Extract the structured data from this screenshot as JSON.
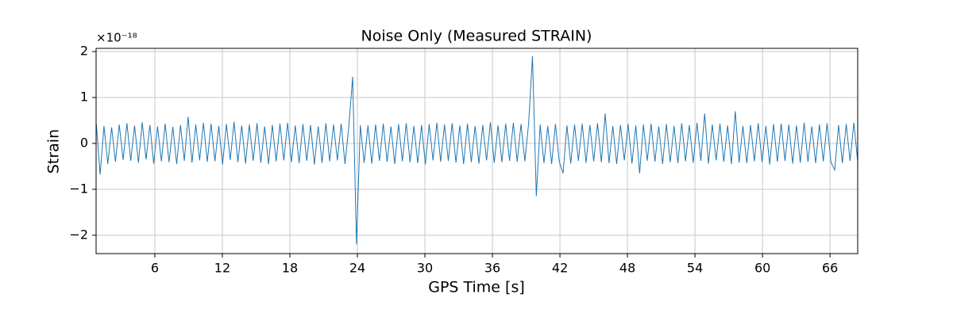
{
  "chart_data": {
    "type": "line",
    "title": "Noise Only (Measured STRAIN)",
    "xlabel": "GPS Time [s]",
    "ylabel": "Strain",
    "y_offset_label": "×10⁻¹⁸",
    "x": [
      0.8,
      1.14,
      1.48,
      1.82,
      2.16,
      2.5,
      2.84,
      3.18,
      3.52,
      3.86,
      4.2,
      4.54,
      4.88,
      5.22,
      5.56,
      5.9,
      6.24,
      6.58,
      6.92,
      7.26,
      7.6,
      7.94,
      8.28,
      8.62,
      8.96,
      9.3,
      9.64,
      9.98,
      10.32,
      10.66,
      11.0,
      11.34,
      11.68,
      12.02,
      12.36,
      12.7,
      13.04,
      13.38,
      13.72,
      14.06,
      14.4,
      14.74,
      15.08,
      15.42,
      15.76,
      16.1,
      16.44,
      16.78,
      17.12,
      17.46,
      17.8,
      18.14,
      18.48,
      18.82,
      19.16,
      19.5,
      19.84,
      20.18,
      20.52,
      20.86,
      21.2,
      21.54,
      21.88,
      22.22,
      22.56,
      22.9,
      23.24,
      23.58,
      23.92,
      24.26,
      24.6,
      24.94,
      25.28,
      25.62,
      25.96,
      26.3,
      26.64,
      26.98,
      27.32,
      27.66,
      28.0,
      28.34,
      28.68,
      29.02,
      29.36,
      29.7,
      30.04,
      30.38,
      30.72,
      31.06,
      31.4,
      31.74,
      32.08,
      32.42,
      32.76,
      33.1,
      33.44,
      33.78,
      34.12,
      34.46,
      34.8,
      35.14,
      35.48,
      35.82,
      36.16,
      36.5,
      36.84,
      37.18,
      37.52,
      37.86,
      38.2,
      38.54,
      38.88,
      39.22,
      39.56,
      39.9,
      40.24,
      40.58,
      40.92,
      41.26,
      41.6,
      41.94,
      42.28,
      42.62,
      42.96,
      43.3,
      43.64,
      43.98,
      44.32,
      44.66,
      45.0,
      45.34,
      45.68,
      46.02,
      46.36,
      46.7,
      47.04,
      47.38,
      47.72,
      48.06,
      48.4,
      48.74,
      49.08,
      49.42,
      49.76,
      50.1,
      50.44,
      50.78,
      51.12,
      51.46,
      51.8,
      52.14,
      52.48,
      52.82,
      53.16,
      53.5,
      53.84,
      54.18,
      54.52,
      54.86,
      55.2,
      55.54,
      55.88,
      56.22,
      56.56,
      56.9,
      57.24,
      57.58,
      57.92,
      58.26,
      58.6,
      58.94,
      59.28,
      59.62,
      59.96,
      60.3,
      60.64,
      60.98,
      61.32,
      61.66,
      62.0,
      62.34,
      62.68,
      63.02,
      63.36,
      63.7,
      64.04,
      64.38,
      64.72,
      65.06,
      65.4,
      65.74,
      66.08,
      66.42,
      66.76,
      67.1,
      67.44,
      67.78,
      68.12,
      68.46
    ],
    "series": [
      {
        "color": "#1f77b4",
        "values": [
          0.42,
          -0.68,
          0.38,
          -0.45,
          0.35,
          -0.4,
          0.41,
          -0.36,
          0.44,
          -0.38,
          0.39,
          -0.42,
          0.46,
          -0.35,
          0.4,
          -0.44,
          0.37,
          -0.39,
          0.43,
          -0.41,
          0.36,
          -0.45,
          0.4,
          -0.38,
          0.58,
          -0.42,
          0.41,
          -0.37,
          0.45,
          -0.4,
          0.43,
          -0.39,
          0.38,
          -0.46,
          0.42,
          -0.36,
          0.47,
          -0.41,
          0.39,
          -0.44,
          0.41,
          -0.38,
          0.44,
          -0.42,
          0.37,
          -0.45,
          0.4,
          -0.39,
          0.43,
          -0.37,
          0.45,
          -0.41,
          0.39,
          -0.43,
          0.42,
          -0.38,
          0.4,
          -0.46,
          0.37,
          -0.42,
          0.44,
          -0.39,
          0.41,
          -0.37,
          0.43,
          -0.45,
          0.38,
          1.45,
          -2.2,
          0.4,
          -0.42,
          0.39,
          -0.44,
          0.41,
          -0.38,
          0.43,
          -0.4,
          0.37,
          -0.45,
          0.42,
          -0.39,
          0.44,
          -0.41,
          0.38,
          -0.43,
          0.4,
          -0.46,
          0.42,
          -0.37,
          0.45,
          -0.4,
          0.41,
          -0.38,
          0.44,
          -0.42,
          0.39,
          -0.45,
          0.43,
          -0.41,
          0.38,
          -0.44,
          0.4,
          -0.37,
          0.46,
          -0.42,
          0.39,
          -0.41,
          0.43,
          -0.38,
          0.45,
          -0.4,
          0.42,
          -0.39,
          0.44,
          1.9,
          -1.15,
          0.41,
          -0.43,
          0.38,
          -0.45,
          0.42,
          -0.4,
          -0.65,
          0.39,
          -0.44,
          0.41,
          -0.38,
          0.43,
          -0.42,
          0.4,
          -0.39,
          0.44,
          -0.41,
          0.65,
          -0.43,
          0.38,
          -0.45,
          0.4,
          -0.37,
          0.42,
          -0.44,
          0.39,
          -0.65,
          0.41,
          -0.38,
          0.43,
          -0.4,
          0.37,
          -0.45,
          0.42,
          -0.41,
          0.38,
          -0.43,
          0.44,
          -0.39,
          0.4,
          -0.42,
          0.45,
          -0.38,
          0.65,
          -0.44,
          0.41,
          -0.37,
          0.43,
          -0.4,
          0.39,
          -0.45,
          0.7,
          -0.42,
          0.38,
          -0.43,
          0.4,
          -0.39,
          0.44,
          -0.41,
          0.38,
          -0.46,
          0.42,
          -0.4,
          0.43,
          -0.38,
          0.41,
          -0.44,
          0.39,
          -0.42,
          0.45,
          -0.4,
          0.37,
          -0.43,
          0.41,
          -0.39,
          0.44,
          -0.41,
          -0.58,
          0.4,
          -0.43,
          0.42,
          -0.38,
          0.45,
          -0.4
        ]
      }
    ],
    "xlim": [
      0.78,
      68.46
    ],
    "ylim": [
      -2.4,
      2.07
    ],
    "xticks": [
      6,
      12,
      18,
      24,
      30,
      36,
      42,
      48,
      54,
      60,
      66
    ],
    "yticks": [
      {
        "value": -2,
        "label": "−2"
      },
      {
        "value": -1,
        "label": "−1"
      },
      0,
      1,
      2
    ],
    "grid": true
  }
}
